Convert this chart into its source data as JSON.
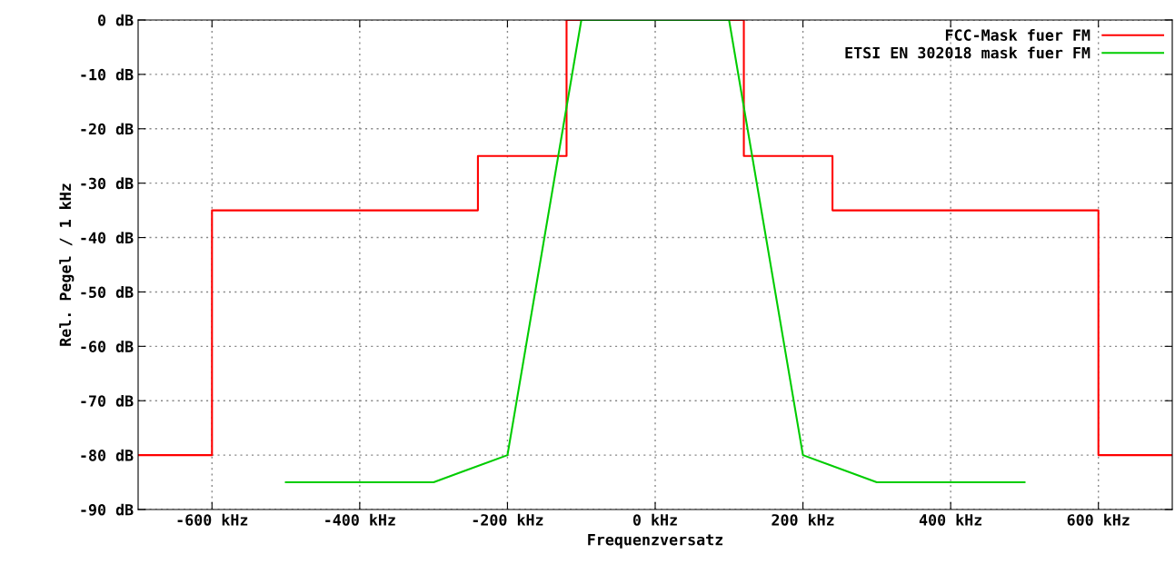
{
  "chart_data": {
    "type": "line",
    "xlabel": "Frequenzversatz",
    "ylabel": "Rel. Pegel / 1 kHz",
    "xlim": [
      -700,
      700
    ],
    "ylim": [
      -90,
      0
    ],
    "xticks": [
      {
        "value": -600,
        "label": "-600 kHz"
      },
      {
        "value": -400,
        "label": "-400 kHz"
      },
      {
        "value": -200,
        "label": "-200 kHz"
      },
      {
        "value": 0,
        "label": "0 kHz"
      },
      {
        "value": 200,
        "label": "200 kHz"
      },
      {
        "value": 400,
        "label": "400 kHz"
      },
      {
        "value": 600,
        "label": "600 kHz"
      }
    ],
    "yticks": [
      {
        "value": -90,
        "label": "-90 dB"
      },
      {
        "value": -80,
        "label": "-80 dB"
      },
      {
        "value": -70,
        "label": "-70 dB"
      },
      {
        "value": -60,
        "label": "-60 dB"
      },
      {
        "value": -50,
        "label": "-50 dB"
      },
      {
        "value": -40,
        "label": "-40 dB"
      },
      {
        "value": -30,
        "label": "-30 dB"
      },
      {
        "value": -20,
        "label": "-20 dB"
      },
      {
        "value": -10,
        "label": "-10 dB"
      },
      {
        "value": 0,
        "label": "0 dB"
      }
    ],
    "grid": true,
    "legend": "top right",
    "series": [
      {
        "name": "FCC-Mask fuer FM",
        "type": "step",
        "color": "#ff0000",
        "x": [
          -700,
          -600,
          -240,
          -120,
          120,
          240,
          600,
          700
        ],
        "values": [
          -80,
          -35,
          -25,
          0,
          -25,
          -35,
          -80,
          -80
        ]
      },
      {
        "name": "ETSI EN 302018 mask fuer FM",
        "color": "#00cc00",
        "x": [
          -500,
          -300,
          -200,
          -100,
          100,
          200,
          300,
          500
        ],
        "values": [
          -85,
          -85,
          -80,
          0,
          0,
          -80,
          -85,
          -85
        ]
      }
    ]
  }
}
